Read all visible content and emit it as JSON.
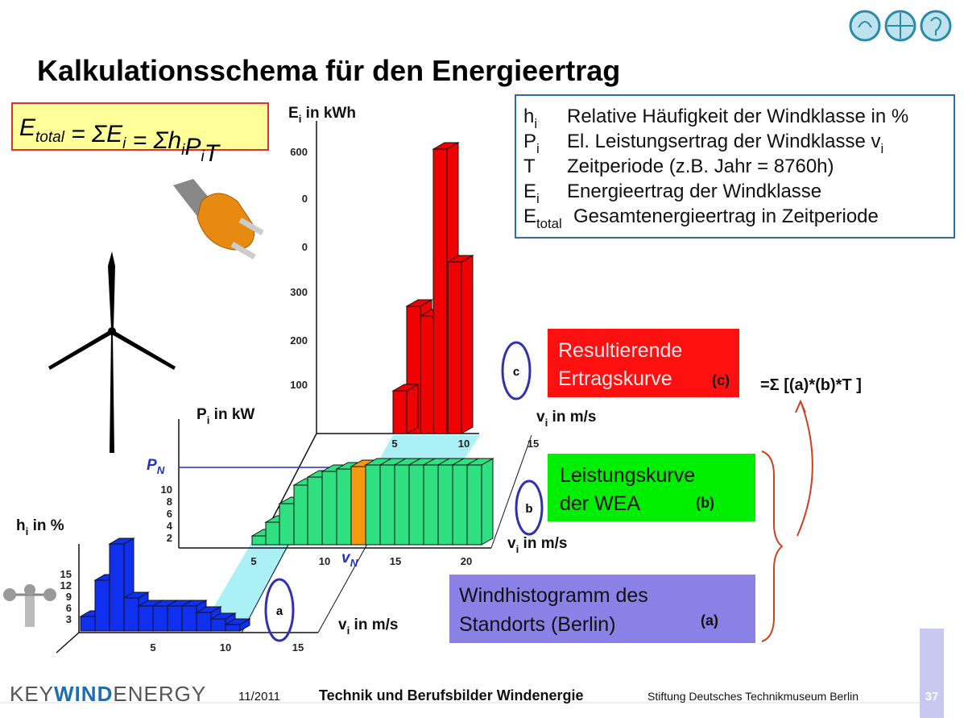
{
  "header": {
    "title": "Kalkulationsschema für den Energieertrag"
  },
  "formula": [
    {
      "base": "E",
      "sub": "total"
    },
    {
      "base": " = ΣE",
      "sub": "i"
    },
    {
      "base": " = Σh",
      "sub": "i"
    },
    {
      "base": "P",
      "sub": "i"
    },
    {
      "base": "T"
    }
  ],
  "legend": [
    {
      "symbol": "h",
      "sub": "i",
      "text": "Relative Häufigkeit der Windklasse in %"
    },
    {
      "symbol": "P",
      "sub": "i",
      "text": "El. Leistungsertrag der Windklasse v",
      "text_sub": "i"
    },
    {
      "symbol": "T",
      "text": "Zeitperiode (z.B. Jahr = 8760h)"
    },
    {
      "symbol": "E",
      "sub": "i",
      "text": "Energieertrag der Windklasse"
    },
    {
      "symbol": "E",
      "sub": "total",
      "text": "Gesamtenergieertrag in Zeitperiode"
    }
  ],
  "energy_axis": {
    "label": "E",
    "label_sub": "i",
    "label_rest": " in kWh",
    "ticks": [
      "600",
      "0",
      "0",
      "300",
      "200",
      "100"
    ],
    "x_ticks": [
      "5",
      "10",
      "15"
    ],
    "x_label": "v",
    "x_label_sub": "i",
    "x_label_rest": " in m/s"
  },
  "power_axis": {
    "label": "P",
    "label_sub": "i",
    "label_rest": " in kW",
    "pn": "P",
    "pn_sub": "N",
    "ticks": [
      "10",
      "8",
      "6",
      "4",
      "2"
    ],
    "x_ticks": [
      "5",
      "10",
      "15",
      "20"
    ],
    "vn": "v",
    "vn_sub": "N",
    "x_label": "v",
    "x_label_sub": "i",
    "x_label_rest": " in m/s"
  },
  "wind_axis": {
    "label": "h",
    "label_sub": "i",
    "label_rest": " in %",
    "ticks": [
      "15",
      "12",
      "9",
      "6",
      "3"
    ],
    "x_ticks": [
      "5",
      "10",
      "15"
    ],
    "x_label": "v",
    "x_label_sub": "i",
    "x_label_rest": " in m/s"
  },
  "markers": {
    "a": "a",
    "b": "b",
    "c": "c"
  },
  "boxes": {
    "result": {
      "lines": [
        "Resultierende",
        "Ertragskurve"
      ],
      "tag": "(c)"
    },
    "power": {
      "lines": [
        "Leistungskurve",
        "der WEA"
      ],
      "tag": "(b)"
    },
    "wind": {
      "lines": [
        "Windhistogramm des",
        "Standorts (Berlin)"
      ],
      "tag": "(a)"
    }
  },
  "sum_formula": "=Σ [(a)*(b)*T ]",
  "footer": {
    "logo_key": "KEY",
    "logo_wind": "WIND",
    "logo_energy": "ENERGY",
    "date": "11/2011",
    "title": "Technik und Berufsbilder Windenergie",
    "org": "Stiftung Deutsches Technikmuseum Berlin",
    "page": "37"
  }
}
